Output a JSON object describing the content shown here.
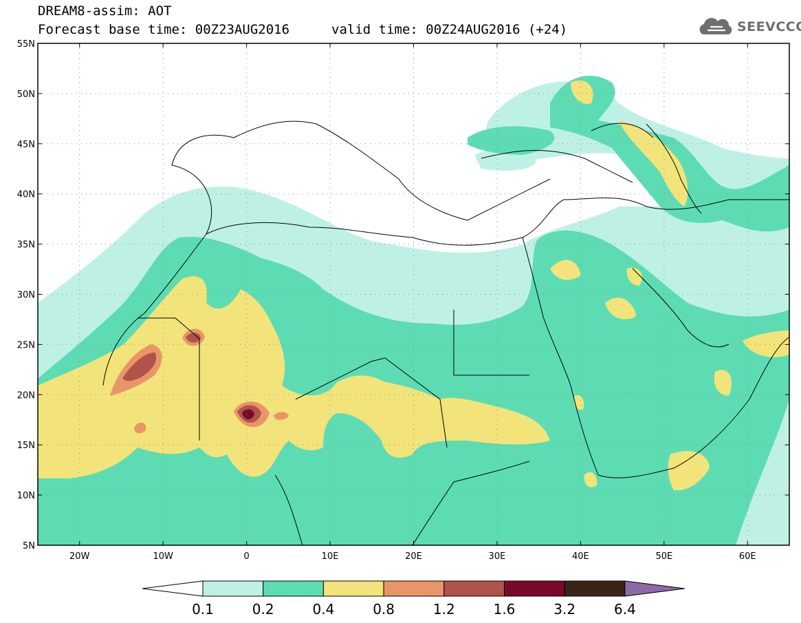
{
  "header": {
    "title": "DREAM8-assim: AOT",
    "base_time": "Forecast base time: 00Z23AUG2016",
    "valid_time": "valid time: 00Z24AUG2016 (+24)"
  },
  "logo": {
    "text": "SEEVCCC",
    "icon": "cloud-icon"
  },
  "map": {
    "lon_range": [
      -25,
      65
    ],
    "lat_range": [
      5,
      55
    ],
    "lat_ticks": [
      "5N",
      "10N",
      "15N",
      "20N",
      "25N",
      "30N",
      "35N",
      "40N",
      "45N",
      "50N",
      "55N"
    ],
    "lon_ticks": [
      "20W",
      "10W",
      "0",
      "10E",
      "20E",
      "30E",
      "40E",
      "50E",
      "60E"
    ],
    "grid": "dotted"
  },
  "colorbar": {
    "labels": [
      "0.1",
      "0.2",
      "0.4",
      "0.8",
      "1.2",
      "1.6",
      "3.2",
      "6.4"
    ],
    "colors": [
      "#bff0e6",
      "#5ddcb4",
      "#f2e47a",
      "#e9956a",
      "#b0534a",
      "#7a0a2a",
      "#3a2418"
    ],
    "under_color": "#ffffff",
    "over_color": "#8e69a8"
  },
  "levels": {
    "c1": "#bff0e6",
    "c2": "#5ddcb4",
    "c3": "#f2e47a",
    "c4": "#e9956a",
    "c5": "#b0534a",
    "c6": "#7a0a2a"
  }
}
